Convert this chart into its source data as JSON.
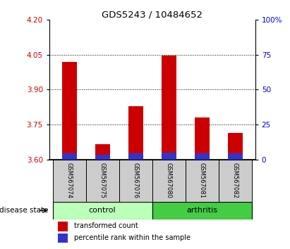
{
  "title": "GDS5243 / 10484652",
  "samples": [
    "GSM567074",
    "GSM567075",
    "GSM567076",
    "GSM567080",
    "GSM567081",
    "GSM567082"
  ],
  "red_values": [
    4.02,
    3.665,
    3.83,
    4.047,
    3.78,
    3.715
  ],
  "blue_values": [
    3.627,
    3.621,
    3.626,
    3.629,
    3.626,
    3.626
  ],
  "ymin": 3.6,
  "ymax": 4.2,
  "yticks_left": [
    3.6,
    3.75,
    3.9,
    4.05,
    4.2
  ],
  "yticks_right": [
    0,
    25,
    50,
    75,
    100
  ],
  "bar_base": 3.6,
  "bar_width": 0.45,
  "red_color": "#cc0000",
  "blue_color": "#3333cc",
  "control_color": "#bbffbb",
  "arthritis_color": "#44cc44",
  "label_bg_color": "#cccccc",
  "tick_label_color_left": "#cc0000",
  "tick_label_color_right": "#0000cc",
  "legend_red": "transformed count",
  "legend_blue": "percentile rank within the sample",
  "disease_state_label": "disease state",
  "grid_lines": [
    3.75,
    3.9,
    4.05
  ],
  "group_info": [
    {
      "label": "control",
      "start": 0,
      "end": 2,
      "color": "#bbffbb"
    },
    {
      "label": "arthritis",
      "start": 3,
      "end": 5,
      "color": "#44cc44"
    }
  ]
}
